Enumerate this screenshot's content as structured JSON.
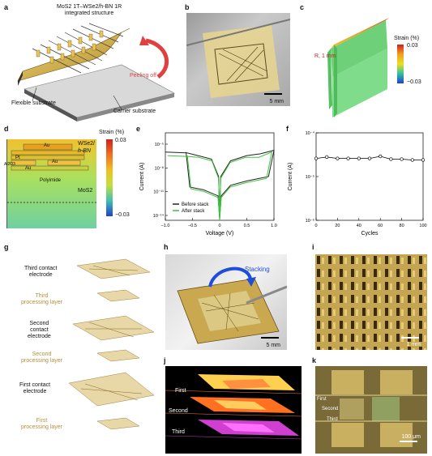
{
  "panel_labels": [
    "a",
    "b",
    "c",
    "d",
    "e",
    "f",
    "g",
    "h",
    "i",
    "j",
    "k"
  ],
  "a": {
    "title_line1": "MoS2 1T–WSe2/h-BN 1R",
    "title_line2": "integrated structure",
    "peel": "Peeling off",
    "flex": "Flexible substrate",
    "carrier": "Carrier substrate"
  },
  "b": {
    "scale": "5 mm"
  },
  "c": {
    "strain_title": "Strain (%)",
    "max": "0.03",
    "min": "−0.03",
    "radius": "R, 1 mm"
  },
  "d": {
    "strain_title": "Strain (%)",
    "max": "0.03",
    "min": "−0.03",
    "layers": [
      "Au",
      "WSe2/",
      "h-BN",
      "Pt",
      "Al2O3",
      "Au",
      "Au",
      "Polyimide",
      "MoS2"
    ]
  },
  "chart_data": [
    {
      "type": "line",
      "panel": "e",
      "xlabel": "Voltage (V)",
      "ylabel": "Current (A)",
      "xlim": [
        -1.0,
        1.0
      ],
      "xticks": [
        "−1.0",
        "−0.5",
        "0",
        "0.5",
        "1.0"
      ],
      "yscale": "log",
      "yticks": [
        "10⁻¹⁴",
        "10⁻¹¹",
        "10⁻⁸",
        "10⁻⁵"
      ],
      "series": [
        {
          "name": "Before stack",
          "color": "#222222"
        },
        {
          "name": "After stack",
          "color": "#3cc23c"
        }
      ]
    },
    {
      "type": "line",
      "panel": "f",
      "xlabel": "Cycles",
      "ylabel": "Current (A)",
      "xlim": [
        0,
        100
      ],
      "xticks": [
        "0",
        "20",
        "40",
        "60",
        "80",
        "100"
      ],
      "yscale": "log",
      "yticks": [
        "10⁻⁶",
        "10⁻⁵",
        "10⁻⁴"
      ],
      "x": [
        0,
        10,
        20,
        30,
        40,
        50,
        60,
        70,
        80,
        90,
        100
      ],
      "values": [
        2.6e-05,
        2.8e-05,
        2.6e-05,
        2.6e-05,
        2.6e-05,
        2.6e-05,
        2.9e-05,
        2.5e-05,
        2.5e-05,
        2.4e-05,
        2.4e-05
      ]
    }
  ],
  "g": {
    "third_contact": [
      "Third contact",
      "electrode"
    ],
    "third_proc": [
      "Third",
      "processing layer"
    ],
    "second_contact": [
      "Second",
      "contact",
      "electrode"
    ],
    "second_proc": [
      "Second",
      "processing layer"
    ],
    "first_contact": [
      "First contact",
      "electrode"
    ],
    "first_proc": [
      "First",
      "processing layer"
    ]
  },
  "h": {
    "stacking": "Stacking",
    "scale": "5 mm"
  },
  "i": {
    "scale": "1 mm"
  },
  "j": {
    "first": "First",
    "second": "Second",
    "third": "Third"
  },
  "k": {
    "first": "First",
    "second": "Second",
    "third": "Third",
    "scale": "100 μm"
  },
  "colors": {
    "gold": "#d6b24a",
    "green": "#7fdc6a",
    "blue": "#1f4fd8"
  }
}
